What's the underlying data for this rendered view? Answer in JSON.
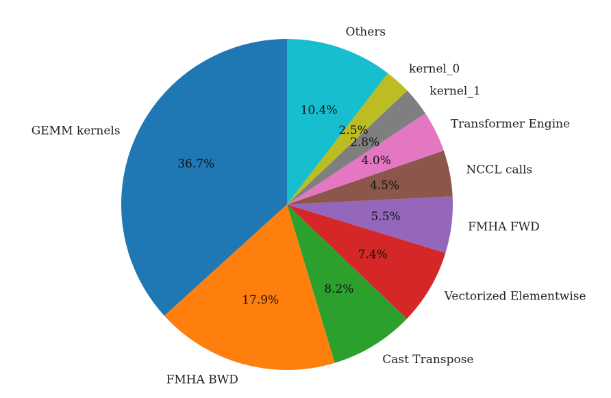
{
  "chart_data": {
    "type": "pie",
    "title": "",
    "start_angle_deg": 90,
    "direction": "counterclockwise",
    "slices": [
      {
        "label": "GEMM kernels",
        "value": 36.7,
        "pct_label": "36.7%",
        "color": "#1f77b4"
      },
      {
        "label": "FMHA BWD",
        "value": 17.9,
        "pct_label": "17.9%",
        "color": "#ff7f0e"
      },
      {
        "label": "Cast Transpose",
        "value": 8.2,
        "pct_label": "8.2%",
        "color": "#2ca02c"
      },
      {
        "label": "Vectorized Elementwise",
        "value": 7.4,
        "pct_label": "7.4%",
        "color": "#d62728"
      },
      {
        "label": "FMHA FWD",
        "value": 5.5,
        "pct_label": "5.5%",
        "color": "#9467bd"
      },
      {
        "label": "NCCL calls",
        "value": 4.5,
        "pct_label": "4.5%",
        "color": "#8c564b"
      },
      {
        "label": "Transformer Engine",
        "value": 4.0,
        "pct_label": "4.0%",
        "color": "#e377c2"
      },
      {
        "label": "kernel_1",
        "value": 2.8,
        "pct_label": "2.8%",
        "color": "#7f7f7f"
      },
      {
        "label": "kernel_0",
        "value": 2.5,
        "pct_label": "2.5%",
        "color": "#bcbd22"
      },
      {
        "label": "Others",
        "value": 10.4,
        "pct_label": "10.4%",
        "color": "#17becf"
      }
    ]
  }
}
